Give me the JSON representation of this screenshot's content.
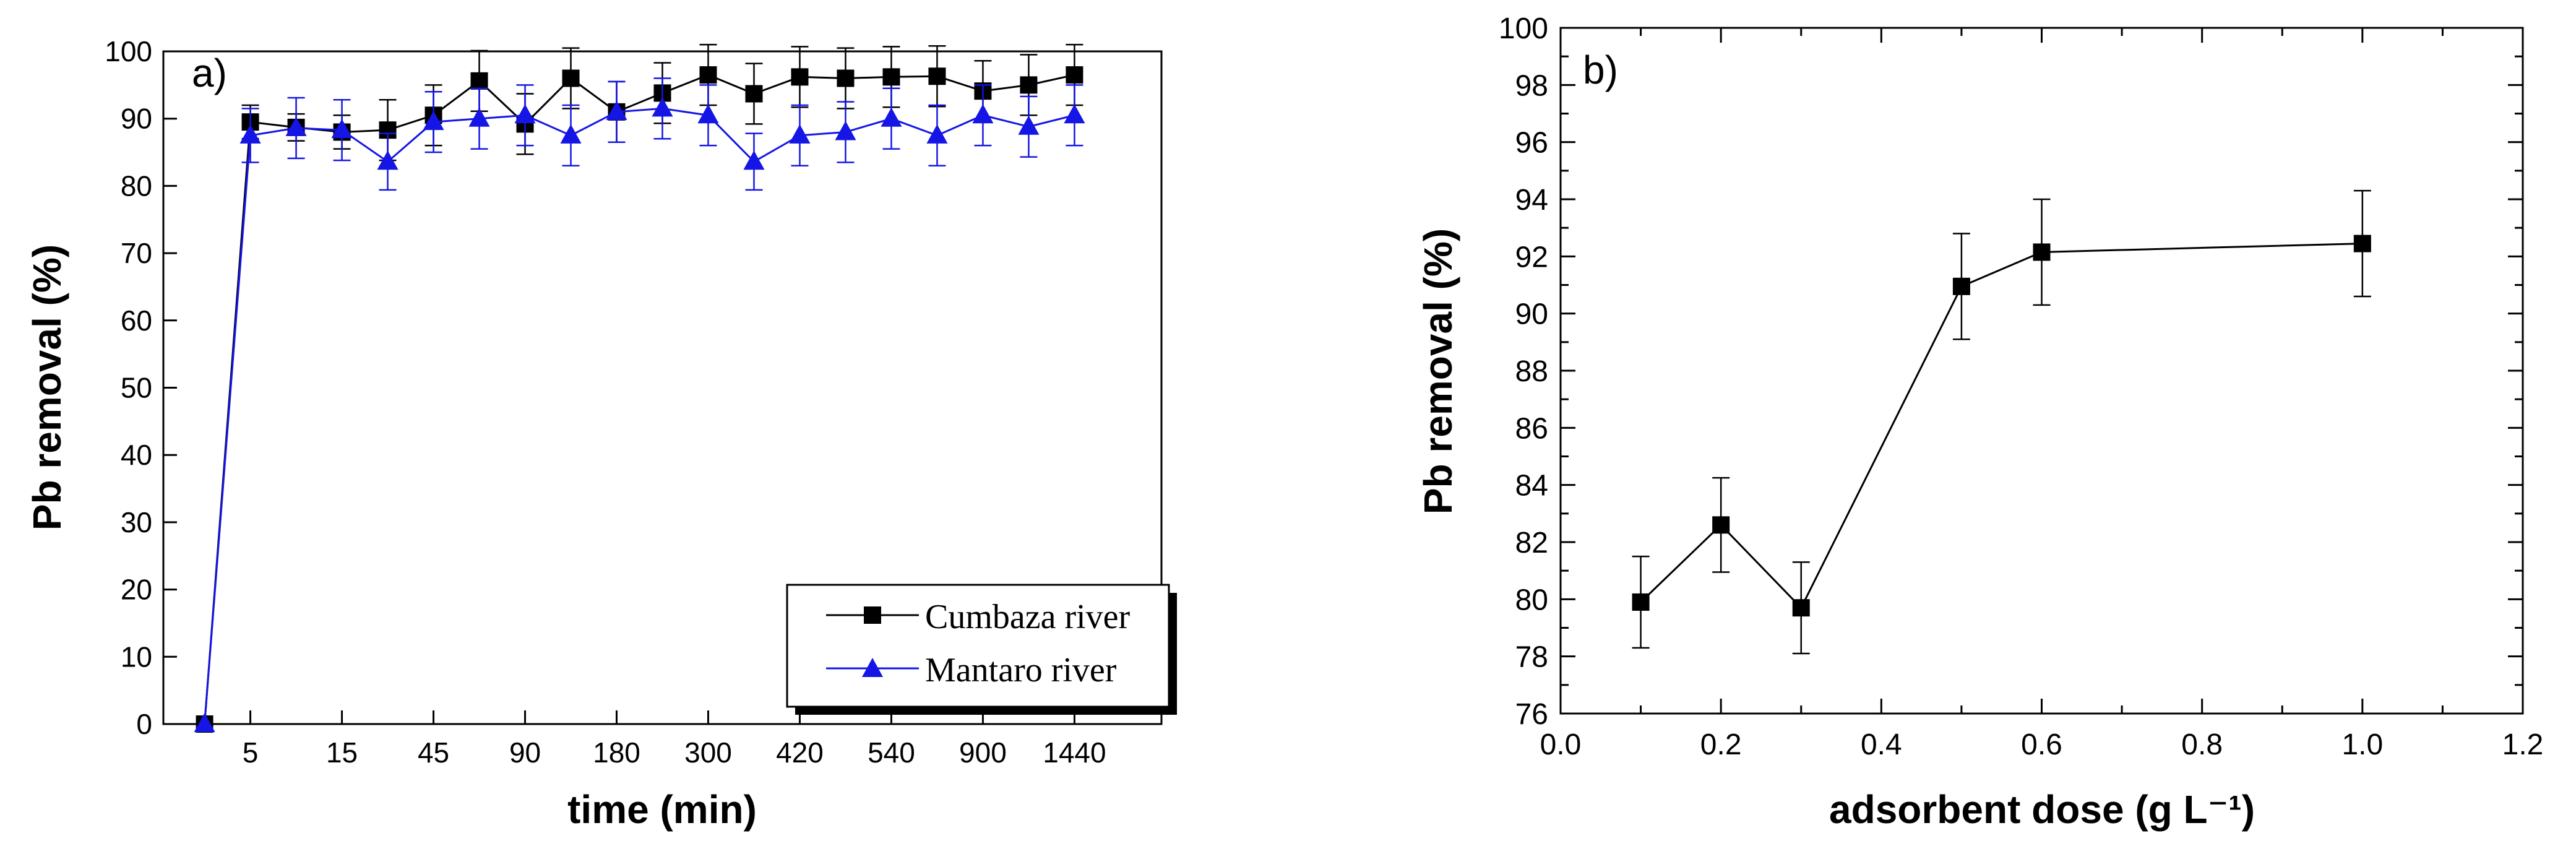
{
  "chart_data": [
    {
      "panel_label": "a)",
      "type": "line",
      "xlabel": "time (min)",
      "ylabel": "Pb removal (%)",
      "ylim": [
        0,
        100
      ],
      "yticks": [
        0,
        10,
        20,
        30,
        40,
        50,
        60,
        70,
        80,
        90,
        100
      ],
      "xticks": [
        {
          "pos": 1,
          "label": "5"
        },
        {
          "pos": 3,
          "label": "15"
        },
        {
          "pos": 5,
          "label": "45"
        },
        {
          "pos": 7,
          "label": "90"
        },
        {
          "pos": 9,
          "label": "180"
        },
        {
          "pos": 11,
          "label": "300"
        },
        {
          "pos": 13,
          "label": "420"
        },
        {
          "pos": 15,
          "label": "540"
        },
        {
          "pos": 17,
          "label": "900"
        },
        {
          "pos": 19,
          "label": "1440"
        }
      ],
      "xlim": [
        -0.9,
        20.9
      ],
      "legend_position": "bottom-right",
      "series": [
        {
          "name": "Cumbaza river",
          "color": "#000000",
          "marker": "square",
          "x": [
            0,
            1,
            2,
            3,
            4,
            5,
            6,
            7,
            8,
            9,
            10,
            11,
            12,
            13,
            14,
            15,
            16,
            17,
            18,
            19
          ],
          "values": [
            0,
            89.5,
            88.7,
            88.0,
            88.3,
            90.5,
            95.6,
            89.2,
            96.0,
            91.0,
            93.8,
            96.5,
            93.7,
            96.2,
            96.0,
            96.2,
            96.3,
            94.1,
            95.0,
            96.5
          ],
          "errors": [
            0,
            2.5,
            2.0,
            2.5,
            4.5,
            4.5,
            4.5,
            4.5,
            4.5,
            4.5,
            4.5,
            4.5,
            4.5,
            4.5,
            4.5,
            4.5,
            4.5,
            4.5,
            4.5,
            4.5
          ]
        },
        {
          "name": "Mantaro river",
          "color": "#1515e6",
          "marker": "triangle",
          "x": [
            0,
            1,
            2,
            3,
            4,
            5,
            6,
            7,
            8,
            9,
            10,
            11,
            12,
            13,
            14,
            15,
            16,
            17,
            18,
            19
          ],
          "values": [
            0,
            87.5,
            88.6,
            88.3,
            83.6,
            89.5,
            90.0,
            90.5,
            87.5,
            91.0,
            91.5,
            90.5,
            83.6,
            87.5,
            88.0,
            90.0,
            87.5,
            90.5,
            88.8,
            90.5
          ],
          "errors": [
            0,
            4.0,
            4.5,
            4.5,
            4.2,
            4.5,
            4.5,
            4.5,
            4.5,
            4.5,
            4.5,
            4.5,
            4.2,
            4.5,
            4.5,
            4.5,
            4.5,
            4.5,
            4.5,
            4.5
          ]
        }
      ]
    },
    {
      "panel_label": "b)",
      "type": "line",
      "xlabel": "adsorbent dose (g L⁻¹)",
      "ylabel": "Pb removal (%)",
      "xlim": [
        0.0,
        1.2
      ],
      "ylim": [
        76,
        100
      ],
      "xticks": [
        "0.0",
        "0.2",
        "0.4",
        "0.6",
        "0.8",
        "1.0",
        "1.2"
      ],
      "yticks": [
        76,
        78,
        80,
        82,
        84,
        86,
        88,
        90,
        92,
        94,
        96,
        98,
        100
      ],
      "series": [
        {
          "name": "Pb removal",
          "color": "#000000",
          "marker": "square",
          "x": [
            0.1,
            0.2,
            0.3,
            0.5,
            0.6,
            1.0
          ],
          "values": [
            79.9,
            82.6,
            79.7,
            90.95,
            92.15,
            92.45
          ],
          "errors": [
            1.6,
            1.65,
            1.6,
            1.85,
            1.85,
            1.85
          ]
        }
      ]
    }
  ]
}
